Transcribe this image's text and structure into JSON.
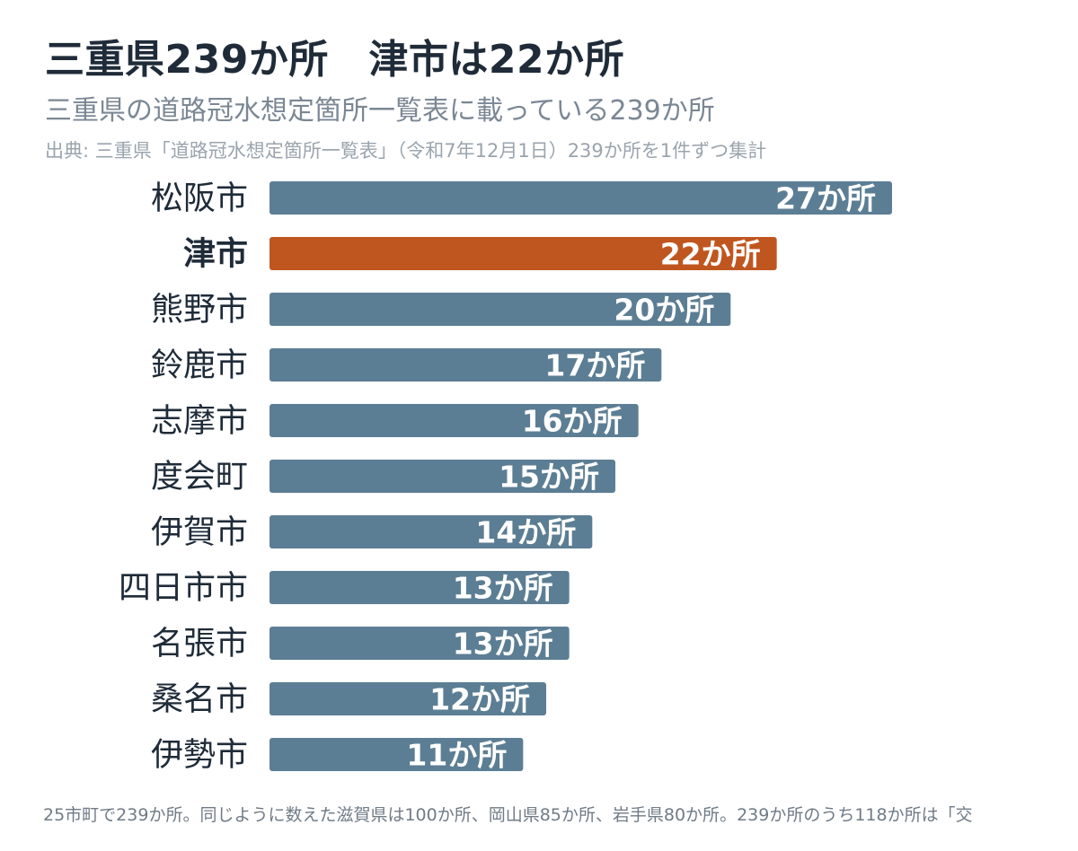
{
  "title": "三重県239か所　津市は22か所",
  "subtitle": "三重県の道路冠水想定箇所一覧表に載っている239か所",
  "source": "出典: 三重県「道路冠水想定箇所一覧表」（令和7年12月1日）239か所を1件ずつ集計",
  "footer": "25市町で239か所。同じように数えた滋賀県は100か所、岡山県85か所、岩手県80か所。239か所のうち118か所は「交",
  "colors": {
    "bar": "#5c7e94",
    "highlight": "#c0561f",
    "label": "#1f2b38",
    "value_text": "#ffffff"
  },
  "value_suffix": "か所",
  "chart_data": {
    "type": "bar",
    "orientation": "horizontal",
    "categories": [
      "松阪市",
      "津市",
      "熊野市",
      "鈴鹿市",
      "志摩市",
      "度会町",
      "伊賀市",
      "四日市市",
      "名張市",
      "桑名市",
      "伊勢市"
    ],
    "values": [
      27,
      22,
      20,
      17,
      16,
      15,
      14,
      13,
      13,
      12,
      11
    ],
    "data_labels": [
      "27か所",
      "22か所",
      "20か所",
      "17か所",
      "16か所",
      "15か所",
      "14か所",
      "13か所",
      "13か所",
      "12か所",
      "11か所"
    ],
    "highlight": "津市",
    "xlim": [
      0,
      27
    ],
    "grid": false,
    "legend": "none"
  }
}
